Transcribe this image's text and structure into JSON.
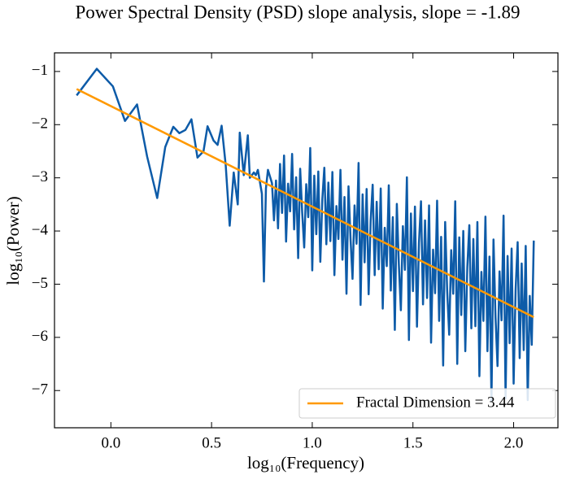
{
  "chart_data": {
    "type": "line",
    "title": "Power Spectral Density (PSD) slope analysis, slope = -1.89",
    "xlabel": "log₁₀(Frequency)",
    "ylabel": "log₁₀(Power)",
    "xlim": [
      -0.28,
      2.22
    ],
    "ylim": [
      -7.7,
      -0.65
    ],
    "xticks": [
      {
        "value": 0,
        "label": "0.0"
      },
      {
        "value": 0.5,
        "label": "0.5"
      },
      {
        "value": 1,
        "label": "1.0"
      },
      {
        "value": 1.5,
        "label": "1.5"
      },
      {
        "value": 2,
        "label": "2.0"
      }
    ],
    "yticks": [
      {
        "value": -1,
        "label": "−1"
      },
      {
        "value": -2,
        "label": "−2"
      },
      {
        "value": -3,
        "label": "−3"
      },
      {
        "value": -4,
        "label": "−4"
      },
      {
        "value": -5,
        "label": "−5"
      },
      {
        "value": -6,
        "label": "−6"
      },
      {
        "value": -7,
        "label": "−7"
      }
    ],
    "legend": "lower right",
    "series": [
      {
        "color": "#0d5ba8",
        "x": [
          -0.17,
          -0.07,
          0.01,
          0.07,
          0.13,
          0.18,
          0.23,
          0.27,
          0.31,
          0.34,
          0.37,
          0.4,
          0.43,
          0.46,
          0.48,
          0.51,
          0.53,
          0.55,
          0.57,
          0.59,
          0.61,
          0.63,
          0.64,
          0.66,
          0.68,
          0.69,
          0.71,
          0.72,
          0.73,
          0.75,
          0.76,
          0.77,
          0.78,
          0.8,
          0.81,
          0.82,
          0.83,
          0.84,
          0.85,
          0.86,
          0.87,
          0.88,
          0.89,
          0.9,
          0.91,
          0.92,
          0.93,
          0.94,
          0.95,
          0.96,
          0.97,
          0.98,
          0.99,
          1.0,
          1.01,
          1.02,
          1.03,
          1.04,
          1.05,
          1.06,
          1.07,
          1.08,
          1.09,
          1.1,
          1.11,
          1.12,
          1.13,
          1.14,
          1.15,
          1.16,
          1.17,
          1.18,
          1.19,
          1.2,
          1.21,
          1.22,
          1.23,
          1.24,
          1.25,
          1.26,
          1.27,
          1.28,
          1.29,
          1.3,
          1.31,
          1.32,
          1.33,
          1.34,
          1.35,
          1.36,
          1.37,
          1.38,
          1.39,
          1.4,
          1.41,
          1.42,
          1.43,
          1.44,
          1.45,
          1.46,
          1.47,
          1.48,
          1.49,
          1.5,
          1.51,
          1.52,
          1.53,
          1.54,
          1.55,
          1.56,
          1.57,
          1.58,
          1.59,
          1.6,
          1.61,
          1.62,
          1.63,
          1.64,
          1.65,
          1.66,
          1.67,
          1.68,
          1.69,
          1.7,
          1.71,
          1.72,
          1.73,
          1.74,
          1.75,
          1.76,
          1.77,
          1.78,
          1.79,
          1.8,
          1.81,
          1.82,
          1.83,
          1.84,
          1.85,
          1.86,
          1.87,
          1.88,
          1.89,
          1.9,
          1.91,
          1.92,
          1.93,
          1.94,
          1.95,
          1.96,
          1.97,
          1.98,
          1.99,
          2.0,
          2.01,
          2.02,
          2.03,
          2.04,
          2.05,
          2.06,
          2.07,
          2.08,
          2.09,
          2.1
        ],
        "values": [
          -1.45,
          -0.95,
          -1.28,
          -1.93,
          -1.62,
          -2.6,
          -3.38,
          -2.42,
          -2.04,
          -2.16,
          -2.1,
          -1.9,
          -2.62,
          -2.5,
          -2.03,
          -2.3,
          -2.38,
          -2.02,
          -2.75,
          -3.9,
          -2.9,
          -3.5,
          -2.15,
          -2.95,
          -2.2,
          -3.0,
          -2.9,
          -2.95,
          -2.85,
          -3.3,
          -4.95,
          -3.2,
          -2.85,
          -3.1,
          -3.8,
          -3.05,
          -3.95,
          -2.74,
          -3.66,
          -2.58,
          -4.2,
          -3.11,
          -3.63,
          -2.55,
          -3.97,
          -2.99,
          -4.51,
          -2.83,
          -3.65,
          -4.31,
          -3.12,
          -3.74,
          -2.44,
          -4.74,
          -2.96,
          -4.06,
          -2.88,
          -4.58,
          -3.4,
          -2.81,
          -4.25,
          -3.09,
          -4.19,
          -2.89,
          -4.83,
          -3.53,
          -4.15,
          -2.85,
          -4.54,
          -3.36,
          -5.18,
          -3.16,
          -4.14,
          -4.9,
          -3.52,
          -4.24,
          -2.72,
          -5.39,
          -3.31,
          -4.59,
          -3.21,
          -5.19,
          -3.81,
          -3.13,
          -4.83,
          -3.45,
          -4.72,
          -3.2,
          -5.46,
          -3.94,
          -4.66,
          -3.14,
          -5.12,
          -3.74,
          -5.86,
          -3.49,
          -4.63,
          -5.49,
          -3.91,
          -4.73,
          -2.99,
          -6.05,
          -3.67,
          -5.13,
          -3.54,
          -5.8,
          -4.22,
          -3.44,
          -5.38,
          -3.8,
          -5.26,
          -3.52,
          -6.1,
          -4.35,
          -5.17,
          -3.43,
          -5.69,
          -4.11,
          -6.53,
          -3.83,
          -5.13,
          -5.95,
          -4.36,
          -5.18,
          -3.44,
          -6.5,
          -4.12,
          -5.58,
          -4.0,
          -6.26,
          -4.68,
          -3.89,
          -5.83,
          -4.15,
          -5.79,
          -3.83,
          -6.73,
          -4.77,
          -5.69,
          -3.73,
          -6.26,
          -4.48,
          -7.2,
          -4.16,
          -5.62,
          -6.54,
          -4.76,
          -5.68,
          -3.71,
          -7.15,
          -4.47,
          -6.11,
          -4.33,
          -6.87,
          -5.09,
          -4.21,
          -6.39,
          -4.61,
          -6.24,
          -4.28,
          -7.18,
          -5.22,
          -6.14,
          -4.18
        ]
      },
      {
        "name": "Fractal Dimension = 3.44",
        "color": "#ff9900",
        "x": [
          -0.17,
          2.1
        ],
        "values": [
          -1.33,
          -5.62
        ]
      }
    ]
  }
}
